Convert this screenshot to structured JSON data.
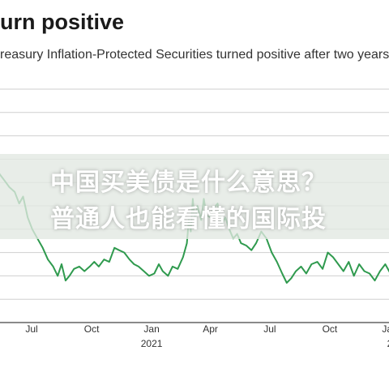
{
  "title": "urn positive",
  "subtitle": "reasury Inflation-Protected Securities turned positive after two years",
  "overlay": {
    "line1": "中国买美债是什么意思？",
    "line2": "普通人也能看懂的国际投"
  },
  "colors": {
    "line": "#2f9a4e",
    "grid": "#cfcfcf",
    "text": "#333333",
    "overlay": "#e1e8e1"
  },
  "chart_data": {
    "type": "line",
    "title": "urn positive",
    "subtitle": "reasury Inflation-Protected Securities turned positive after two years",
    "xlabel": "",
    "ylabel": "",
    "grid": true,
    "x_tick_labels": [
      {
        "label": "Jul",
        "sublabel": "",
        "x": "2020-07"
      },
      {
        "label": "Oct",
        "sublabel": "",
        "x": "2020-10"
      },
      {
        "label": "Jan",
        "sublabel": "2021",
        "x": "2021-01"
      },
      {
        "label": "Apr",
        "sublabel": "",
        "x": "2021-04"
      },
      {
        "label": "Jul",
        "sublabel": "",
        "x": "2021-07"
      },
      {
        "label": "Oct",
        "sublabel": "",
        "x": "2021-10"
      },
      {
        "label": "Jan",
        "sublabel": "2",
        "x": "2022-01"
      }
    ],
    "series": [
      {
        "values": [
          [
            "2020-04-25",
            0.62
          ],
          [
            "2020-05-05",
            0.6
          ],
          [
            "2020-05-12",
            0.64
          ],
          [
            "2020-05-20",
            0.61
          ],
          [
            "2020-05-28",
            0.58
          ],
          [
            "2020-06-05",
            0.56
          ],
          [
            "2020-06-12",
            0.51
          ],
          [
            "2020-06-18",
            0.54
          ],
          [
            "2020-06-25",
            0.45
          ],
          [
            "2020-07-02",
            0.4
          ],
          [
            "2020-07-10",
            0.36
          ],
          [
            "2020-07-18",
            0.32
          ],
          [
            "2020-07-26",
            0.27
          ],
          [
            "2020-08-03",
            0.24
          ],
          [
            "2020-08-10",
            0.2
          ],
          [
            "2020-08-16",
            0.25
          ],
          [
            "2020-08-22",
            0.18
          ],
          [
            "2020-08-28",
            0.2
          ],
          [
            "2020-09-04",
            0.23
          ],
          [
            "2020-09-12",
            0.24
          ],
          [
            "2020-09-20",
            0.22
          ],
          [
            "2020-09-28",
            0.24
          ],
          [
            "2020-10-05",
            0.26
          ],
          [
            "2020-10-12",
            0.24
          ],
          [
            "2020-10-20",
            0.27
          ],
          [
            "2020-10-28",
            0.26
          ],
          [
            "2020-11-05",
            0.32
          ],
          [
            "2020-11-12",
            0.31
          ],
          [
            "2020-11-20",
            0.3
          ],
          [
            "2020-11-28",
            0.27
          ],
          [
            "2020-12-05",
            0.25
          ],
          [
            "2020-12-12",
            0.24
          ],
          [
            "2020-12-20",
            0.22
          ],
          [
            "2020-12-28",
            0.2
          ],
          [
            "2021-01-05",
            0.21
          ],
          [
            "2021-01-12",
            0.25
          ],
          [
            "2021-01-18",
            0.22
          ],
          [
            "2021-01-26",
            0.2
          ],
          [
            "2021-02-02",
            0.24
          ],
          [
            "2021-02-10",
            0.23
          ],
          [
            "2021-02-18",
            0.28
          ],
          [
            "2021-02-24",
            0.34
          ],
          [
            "2021-02-27",
            0.44
          ],
          [
            "2021-03-02",
            0.39
          ],
          [
            "2021-03-05",
            0.53
          ],
          [
            "2021-03-08",
            0.43
          ],
          [
            "2021-03-12",
            0.5
          ],
          [
            "2021-03-18",
            0.44
          ],
          [
            "2021-03-22",
            0.53
          ],
          [
            "2021-03-26",
            0.46
          ],
          [
            "2021-04-01",
            0.45
          ],
          [
            "2021-04-06",
            0.49
          ],
          [
            "2021-04-12",
            0.51
          ],
          [
            "2021-04-18",
            0.42
          ],
          [
            "2021-04-24",
            0.45
          ],
          [
            "2021-04-30",
            0.4
          ],
          [
            "2021-05-06",
            0.36
          ],
          [
            "2021-05-12",
            0.38
          ],
          [
            "2021-05-18",
            0.34
          ],
          [
            "2021-05-26",
            0.33
          ],
          [
            "2021-06-03",
            0.31
          ],
          [
            "2021-06-10",
            0.34
          ],
          [
            "2021-06-18",
            0.39
          ],
          [
            "2021-06-26",
            0.36
          ],
          [
            "2021-07-04",
            0.3
          ],
          [
            "2021-07-12",
            0.26
          ],
          [
            "2021-07-20",
            0.21
          ],
          [
            "2021-07-27",
            0.17
          ],
          [
            "2021-08-03",
            0.19
          ],
          [
            "2021-08-10",
            0.22
          ],
          [
            "2021-08-18",
            0.24
          ],
          [
            "2021-08-26",
            0.21
          ],
          [
            "2021-09-03",
            0.25
          ],
          [
            "2021-09-12",
            0.26
          ],
          [
            "2021-09-20",
            0.23
          ],
          [
            "2021-09-28",
            0.3
          ],
          [
            "2021-10-06",
            0.28
          ],
          [
            "2021-10-14",
            0.25
          ],
          [
            "2021-10-22",
            0.22
          ],
          [
            "2021-10-30",
            0.26
          ],
          [
            "2021-11-07",
            0.2
          ],
          [
            "2021-11-15",
            0.25
          ],
          [
            "2021-11-23",
            0.22
          ],
          [
            "2021-12-01",
            0.21
          ],
          [
            "2021-12-09",
            0.18
          ],
          [
            "2021-12-17",
            0.22
          ],
          [
            "2021-12-25",
            0.25
          ],
          [
            "2022-01-02",
            0.21
          ],
          [
            "2022-01-10",
            0.24
          ]
        ]
      }
    ],
    "y_ticks": [
      0,
      0.1,
      0.2,
      0.3,
      0.4,
      0.5,
      0.6,
      0.7,
      0.8,
      0.9,
      1.0
    ]
  }
}
